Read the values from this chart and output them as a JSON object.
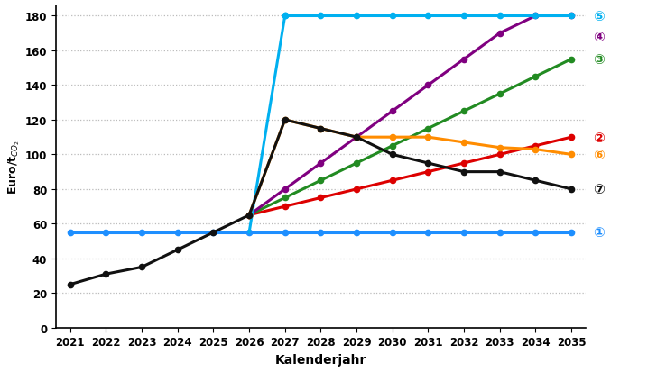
{
  "series": [
    {
      "label": "1",
      "color": "#1e8fff",
      "years": [
        2021,
        2022,
        2023,
        2024,
        2025,
        2026,
        2027,
        2028,
        2029,
        2030,
        2031,
        2032,
        2033,
        2034,
        2035
      ],
      "values": [
        55,
        55,
        55,
        55,
        55,
        55,
        55,
        55,
        55,
        55,
        55,
        55,
        55,
        55,
        55
      ],
      "linewidth": 2.2,
      "markersize": 4.5
    },
    {
      "label": "2",
      "color": "#dd0000",
      "years": [
        2026,
        2027,
        2028,
        2029,
        2030,
        2031,
        2032,
        2033,
        2034,
        2035
      ],
      "values": [
        65,
        70,
        75,
        80,
        85,
        90,
        95,
        100,
        105,
        110
      ],
      "linewidth": 2.2,
      "markersize": 4.5
    },
    {
      "label": "3",
      "color": "#228B22",
      "years": [
        2026,
        2027,
        2028,
        2029,
        2030,
        2031,
        2032,
        2033,
        2034,
        2035
      ],
      "values": [
        65,
        75,
        85,
        95,
        105,
        115,
        125,
        135,
        145,
        155
      ],
      "linewidth": 2.2,
      "markersize": 4.5
    },
    {
      "label": "4",
      "color": "#800080",
      "years": [
        2026,
        2027,
        2028,
        2029,
        2030,
        2031,
        2032,
        2033,
        2034,
        2035
      ],
      "values": [
        65,
        80,
        95,
        110,
        125,
        140,
        155,
        170,
        180,
        180
      ],
      "linewidth": 2.2,
      "markersize": 4.5
    },
    {
      "label": "5",
      "color": "#00b0f0",
      "years_vert": [
        2026,
        2027
      ],
      "values_vert": [
        55,
        180
      ],
      "years_horiz": [
        2027,
        2028,
        2029,
        2030,
        2031,
        2032,
        2033,
        2034,
        2035
      ],
      "values_horiz": [
        180,
        180,
        180,
        180,
        180,
        180,
        180,
        180,
        180
      ],
      "linewidth": 2.2,
      "markersize": 4.5
    },
    {
      "label": "6",
      "color": "#ff8c00",
      "years": [
        2026,
        2027,
        2028,
        2029,
        2030,
        2031,
        2032,
        2033,
        2034,
        2035
      ],
      "values": [
        65,
        120,
        115,
        110,
        110,
        110,
        107,
        104,
        103,
        100
      ],
      "linewidth": 2.2,
      "markersize": 4.5
    },
    {
      "label": "7",
      "color": "#111111",
      "years": [
        2021,
        2022,
        2023,
        2024,
        2025,
        2026,
        2027,
        2028,
        2029,
        2030,
        2031,
        2032,
        2033,
        2034,
        2035
      ],
      "values": [
        25,
        31,
        35,
        45,
        55,
        65,
        120,
        115,
        110,
        100,
        95,
        90,
        90,
        85,
        80
      ],
      "linewidth": 2.2,
      "markersize": 4.5
    }
  ],
  "right_labels": [
    {
      "text": "①",
      "y": 55,
      "color": "#1e8fff"
    },
    {
      "text": "②",
      "y": 110,
      "color": "#dd0000"
    },
    {
      "text": "③",
      "y": 155,
      "color": "#228B22"
    },
    {
      "text": "④",
      "y": 168,
      "color": "#800080"
    },
    {
      "text": "⑤",
      "y": 180,
      "color": "#00b0f0"
    },
    {
      "text": "⑥",
      "y": 100,
      "color": "#ff8c00"
    },
    {
      "text": "⑦",
      "y": 80,
      "color": "#111111"
    }
  ],
  "xlabel": "Kalenderjahr",
  "ylabel": "Euro/t$_{CO_2}$",
  "xlim": [
    2020.6,
    2035.4
  ],
  "ylim": [
    0,
    186
  ],
  "yticks": [
    0,
    20,
    40,
    60,
    80,
    100,
    120,
    140,
    160,
    180
  ],
  "xticks": [
    2021,
    2022,
    2023,
    2024,
    2025,
    2026,
    2027,
    2028,
    2029,
    2030,
    2031,
    2032,
    2033,
    2034,
    2035
  ],
  "grid_color": "#bbbbbb",
  "grid_linestyle": "dotted",
  "background_color": "#ffffff"
}
